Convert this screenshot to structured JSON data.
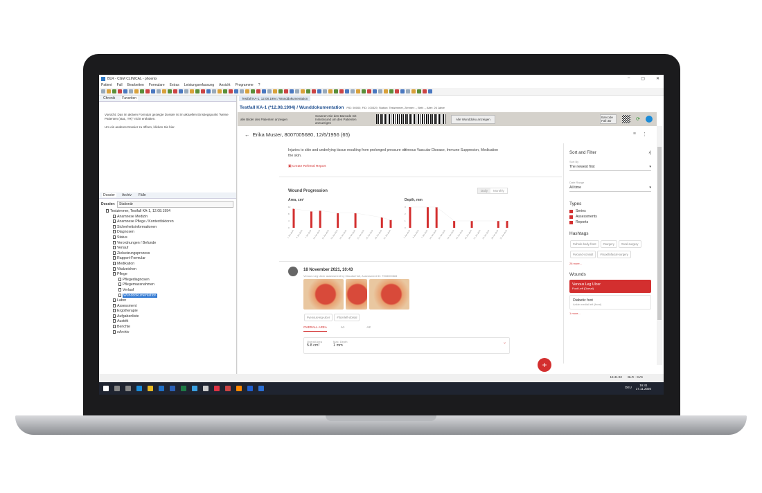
{
  "window": {
    "title": "BLR - CGM CLINICAL - phoenix",
    "controls": [
      "–",
      "▢",
      "✕"
    ]
  },
  "menu": [
    "Patient",
    "Fall",
    "Bearbeiten",
    "Formulare",
    "Extras",
    "Leistungserfassung",
    "Ansicht",
    "Programme",
    "?"
  ],
  "left_top": {
    "tabs": [
      "Chronik",
      "Favoriten"
    ],
    "message1": "Vorsicht: Das im aktiven Formular gezeigte Dossier ist im aktuellen Einstiegspunkt \"Meine Patienten (stat., TR)\" nicht enthalten.",
    "message2": "Um ein anderes Dossier zu öffnen, klicken Sie hier."
  },
  "left_bottom": {
    "tabs": [
      "Dossier",
      "Archiv",
      "Fälle"
    ],
    "dossier_label": "Dossier:",
    "dossier_value": "Stationär",
    "root": "Testzimmer, Testfall KA-1, 12.08.1994",
    "items": [
      "Anamnese Medizin",
      "Anamnese Pflege / Kontextfaktoren",
      "Sicherheitsinformationen",
      "Diagnosen",
      "Status",
      "Verordnungen / Befunde",
      "Verlauf",
      "Zielsetzungsprozess",
      "Rapport-Formular",
      "Medikation",
      "Vitalzeichen",
      "Pflege"
    ],
    "pflege_items": [
      "Pflegediagnosen",
      "Pflegemassnahmen",
      "Verlauf",
      "Wunddokumentation"
    ],
    "items2": [
      "Labor",
      "Assessment",
      "Ergotherapie",
      "Aufgabenliste",
      "Austritt",
      "Berichte",
      "eArchiv"
    ]
  },
  "editor_tab": "Testfall KA-1, 12.08.1994 / Wunddokumentation",
  "header": {
    "title": "Testfall KA-1 (*12.08.1994) / Wunddokumentation",
    "meta": "PID: 50000, FID: 100329, Station: Testzimmer, Zimmer: -, Bett: -, Alter: 26 Jahre"
  },
  "graybar": {
    "checkbox": "alle Bilder des Patienten anzeigen",
    "scan": "Scannen Sie den Barcode mit Initiotsound um den Patienten anzuzeigen",
    "all_button": "Alle Wunddoku anzeigen",
    "barcode_button": "Barcode Fall 3D"
  },
  "patient": "Erika Muster, 8007005680, 12/6/1956 (65)",
  "details": {
    "cause": "Injuries to skin and underlying tissue resulting from prolonged pressure on the skin.",
    "factors": "Venous Vascular Disease, Immune Suppresion, Medication",
    "referral": "Create Referral Report"
  },
  "progression": {
    "title": "Wound Progression",
    "toggle": [
      "Daily",
      "Monthly"
    ]
  },
  "chart_data": [
    {
      "type": "bar",
      "title": "Area, cm²",
      "yticks": [
        0,
        4,
        8,
        12
      ],
      "ylim": [
        0,
        12
      ],
      "categories": [
        "1 Jan 2020",
        "4 Jan 2020",
        "7 Jan 2020",
        "10 Jan 2020",
        "12 Jan 2020",
        "14 Jan 2020",
        "16 Jan 2020",
        "18 Jan 2020",
        "21 Jan 2020",
        "25 Jan 2020",
        "28 Jan 2020",
        "31 Jan 2020"
      ],
      "values": [
        11,
        null,
        9.5,
        10,
        null,
        8.5,
        null,
        8.5,
        null,
        null,
        6,
        4.5
      ]
    },
    {
      "type": "bar",
      "title": "Depth, mm",
      "yticks": [
        0,
        1,
        2,
        3
      ],
      "ylim": [
        0,
        3
      ],
      "categories": [
        "1 Jan 2020",
        "4 Jan 2020",
        "7 Jan 2020",
        "10 Jan 2020",
        "12 Jan 2020",
        "14 Jan 2020",
        "16 Jan 2020",
        "18 Jan 2020",
        "21 Jan 2020",
        "25 Jan 2020",
        "28 Jan 2020",
        "31 Jan 2020"
      ],
      "values": [
        3,
        null,
        3,
        3,
        null,
        1,
        null,
        1,
        null,
        null,
        1,
        1
      ]
    }
  ],
  "assessment": {
    "date": "18 November 2021, 10:43",
    "subtitle": "Venous Leg Ulcer assessment by Claudia Holl, Assessment ID: 7908000884",
    "tags": [
      "#venous-leg-ulcer",
      "#foot-left-dorsal"
    ],
    "tabs": [
      "OVERALL AREA",
      "A1",
      "A2"
    ],
    "area_label": "Overall Area",
    "area_value": "5.8 cm²",
    "depth_label": "Max. Depth",
    "depth_value": "1 mm"
  },
  "sidebar": {
    "title": "Sort and Filter",
    "sort_label": "Sort By",
    "sort_value": "The newest first",
    "range_label": "Date Range",
    "range_value": "All time",
    "types_title": "Types",
    "types": [
      "Series",
      "Assessments",
      "Reports"
    ],
    "hashtags_title": "Hashtags",
    "hashtags": [
      "#whole-body-front",
      "#surgery",
      "#oral-surgery",
      "#wound-consult",
      "#maxillofacial-surgery"
    ],
    "hashtags_more": "28 more...",
    "wounds_title": "Wounds",
    "wounds": [
      {
        "name": "Venous Leg Ulcer",
        "loc": "Foot Left (Dorsal)"
      },
      {
        "name": "Diabetic foot",
        "loc": "Ankle medial left (front)"
      }
    ],
    "wounds_more": "1 more..."
  },
  "status": {
    "time": "16:41:32",
    "user": "BLR - SVS"
  },
  "taskbar": {
    "lang": "DEU",
    "time": "16:41",
    "date": "17.11.2020"
  },
  "colors": {
    "accent": "#d32f2f",
    "header": "#1f4f8f",
    "selection": "#2a74d0"
  }
}
